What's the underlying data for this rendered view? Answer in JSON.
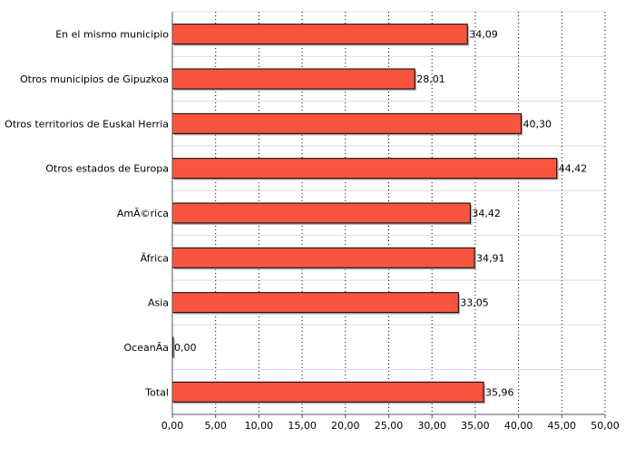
{
  "chart_data": {
    "type": "bar",
    "orientation": "horizontal",
    "categories": [
      "En el mismo municipio",
      "Otros municipios de Gipuzkoa",
      "Otros territorios de Euskal Herria",
      "Otros estados de Europa",
      "AmÃ©rica",
      "Ãfrica",
      "Asia",
      "OceanÃ­a",
      "Total"
    ],
    "values": [
      34.09,
      28.01,
      40.3,
      44.42,
      34.42,
      34.91,
      33.05,
      0.0,
      35.96
    ],
    "value_labels": [
      "34,09",
      "28,01",
      "40,30",
      "44,42",
      "34,42",
      "34,91",
      "33,05",
      "0,00",
      "35,96"
    ],
    "xlim": [
      0,
      50
    ],
    "x_ticks": [
      0,
      5,
      10,
      15,
      20,
      25,
      30,
      35,
      40,
      45,
      50
    ],
    "x_tick_labels": [
      "0,00",
      "5,00",
      "10,00",
      "15,00",
      "20,00",
      "25,00",
      "30,00",
      "35,00",
      "40,00",
      "45,00",
      "50,00"
    ],
    "title": "",
    "xlabel": "",
    "ylabel": "",
    "grid": true,
    "legend": "none",
    "colors": {
      "bar_fill": "#f9553e",
      "bar_stroke": "#000000",
      "bar_shadow": "#b7b7b7",
      "vertical_grid": "#000000",
      "horizontal_grid": "#dddddd",
      "axis": "#555555"
    }
  }
}
